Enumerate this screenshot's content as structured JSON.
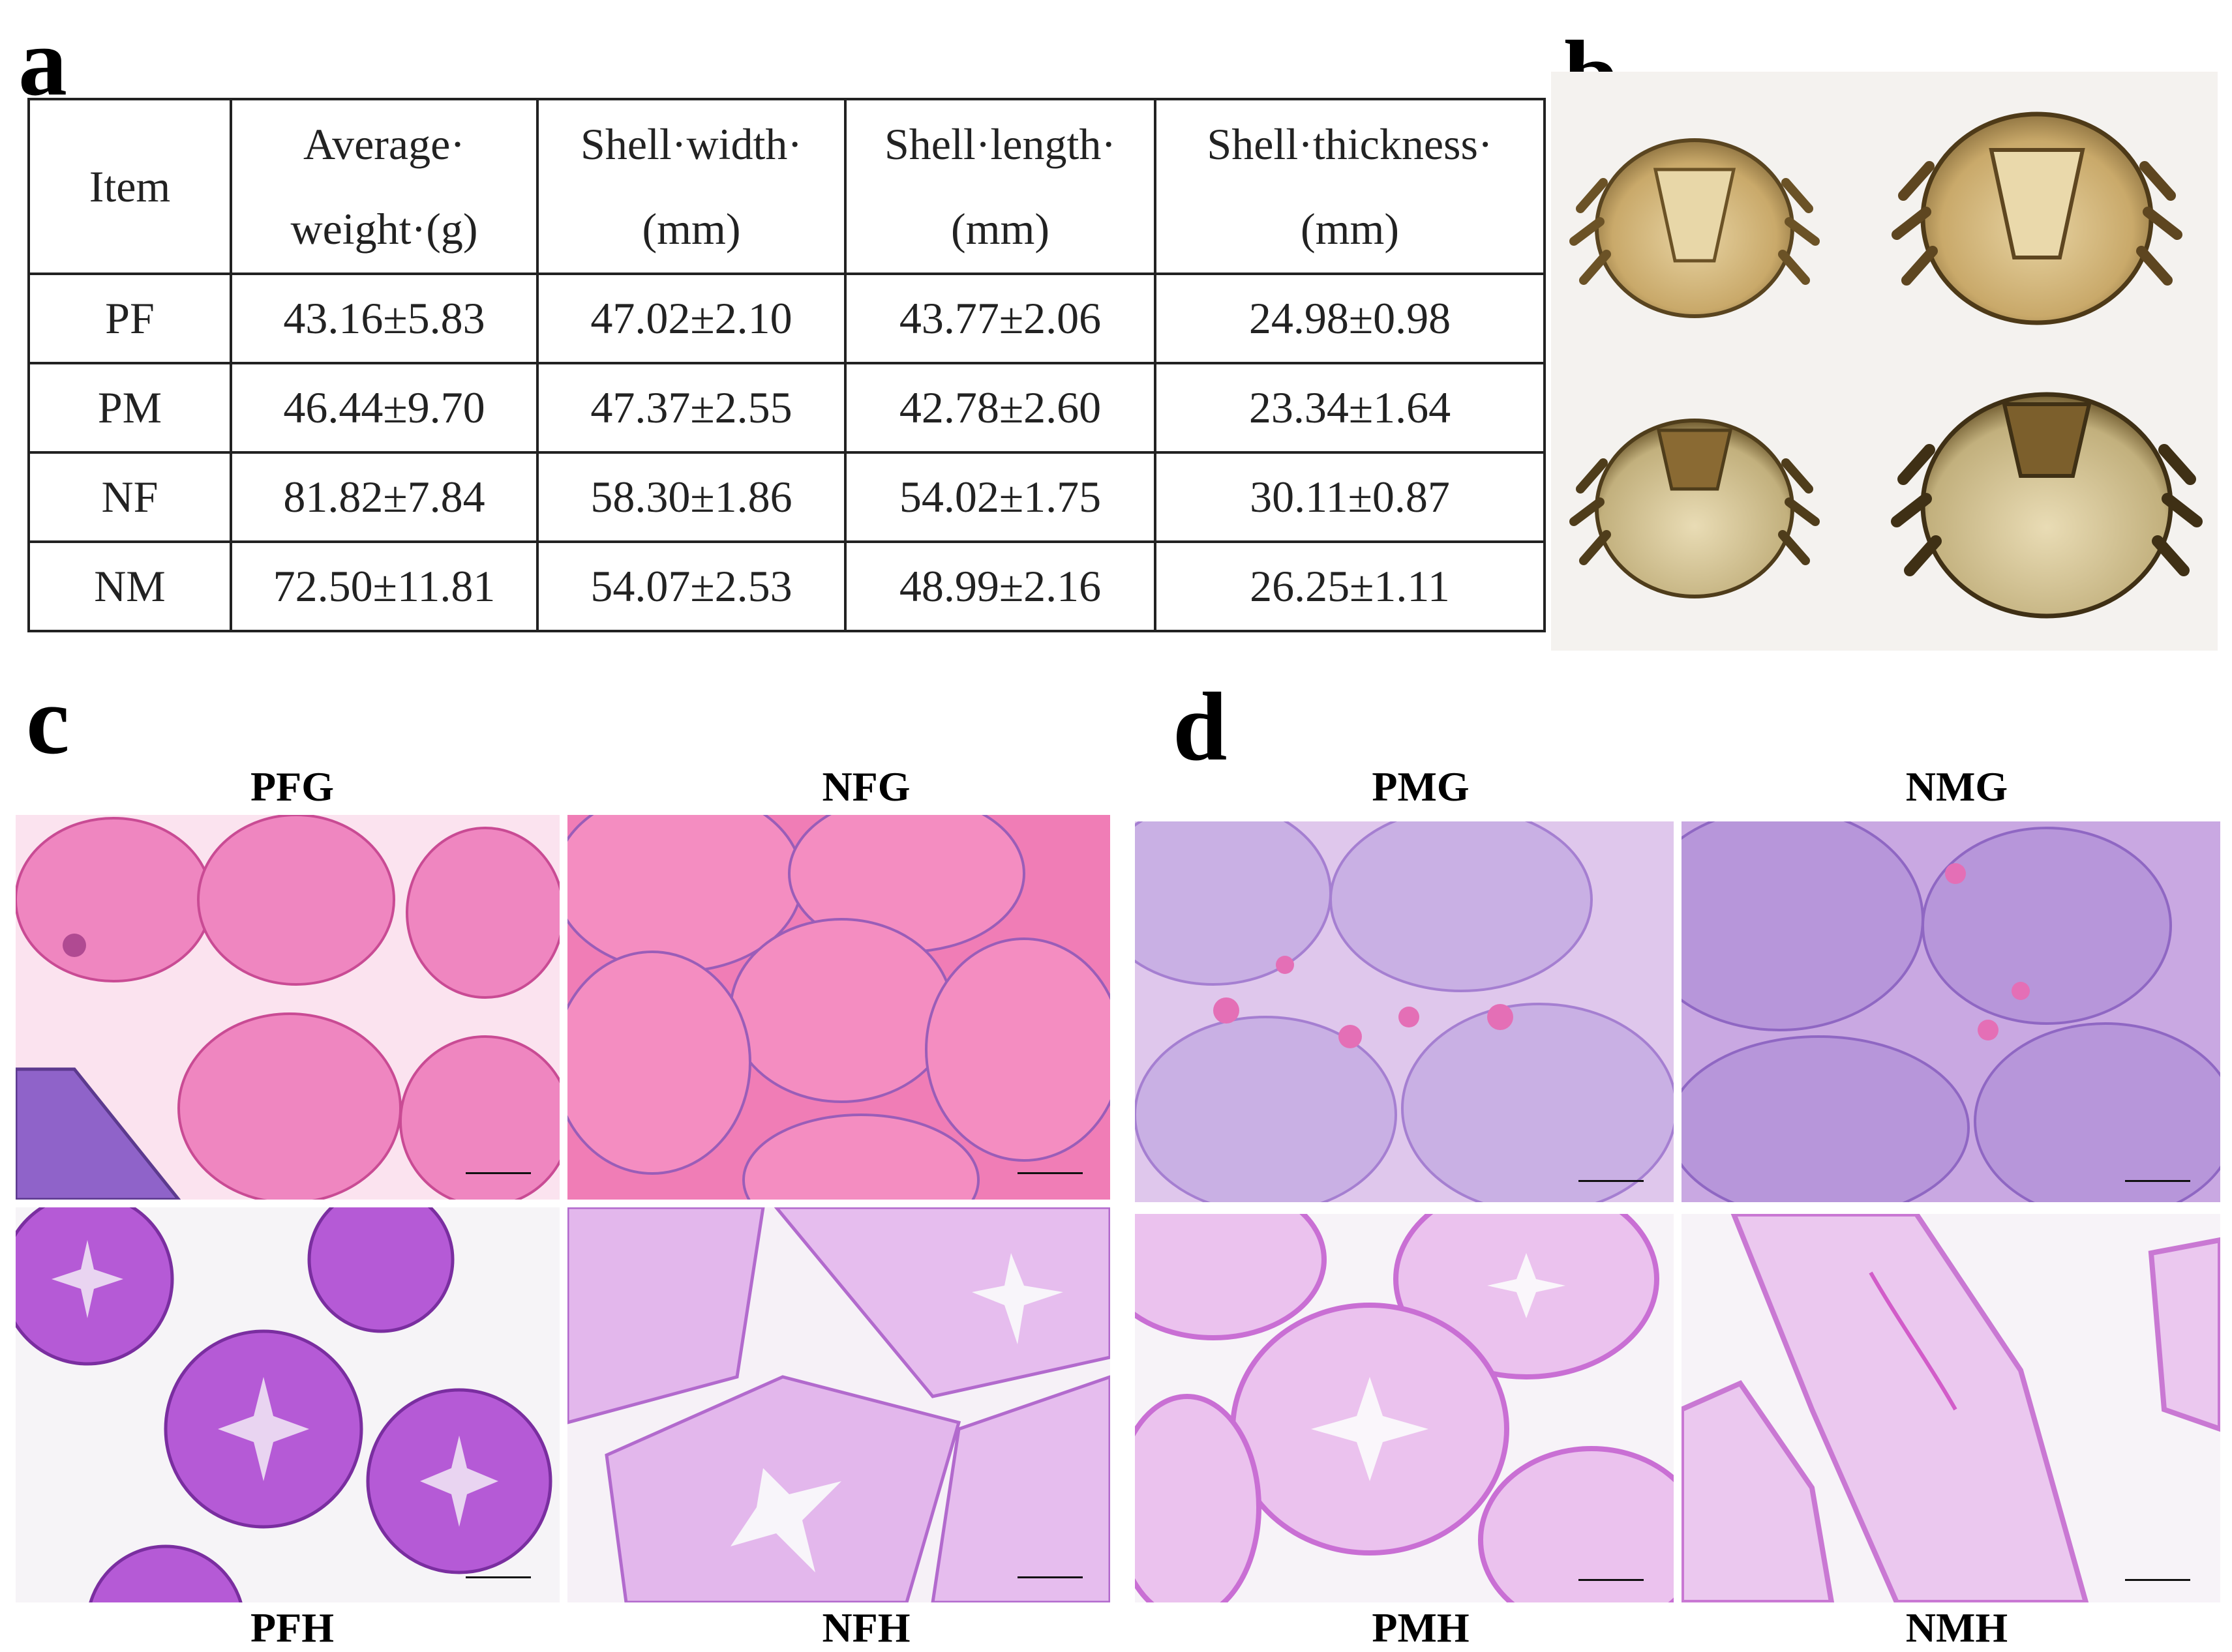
{
  "panel_labels": {
    "a": "a",
    "b": "b",
    "c": "c",
    "d": "d"
  },
  "table": {
    "headers": [
      [
        "Item"
      ],
      [
        "Average·",
        "weight·(g)"
      ],
      [
        "Shell·width·",
        "(mm)"
      ],
      [
        "Shell·length·",
        "(mm)"
      ],
      [
        "Shell·thickness·",
        "(mm)"
      ]
    ],
    "rows": [
      [
        "PF",
        "43.16±5.83",
        "47.02±2.10",
        "43.77±2.06",
        "24.98±0.98"
      ],
      [
        "PM",
        "46.44±9.70",
        "47.37±2.55",
        "42.78±2.60",
        "23.34±1.64"
      ],
      [
        "NF",
        "81.82±7.84",
        "58.30±1.86",
        "54.02±1.75",
        "30.11±0.87"
      ],
      [
        "NM",
        "72.50±11.81",
        "54.07±2.53",
        "48.99±2.16",
        "26.25±1.11"
      ]
    ]
  },
  "micrographs": {
    "c": {
      "top_left": "PFG",
      "top_right": "NFG",
      "bottom_left": "PFH",
      "bottom_right": "NFH"
    },
    "d": {
      "top_left": "PMG",
      "top_right": "NMG",
      "bottom_left": "PMH",
      "bottom_right": "NMH"
    }
  },
  "colors": {
    "eosin_pink": "#ec6fb4",
    "hematoxylin_purple": "#b25fd6",
    "lilac": "#c7a7e0",
    "photo_background": "#f4f2ef",
    "crab_shell": "#c9a96a"
  }
}
